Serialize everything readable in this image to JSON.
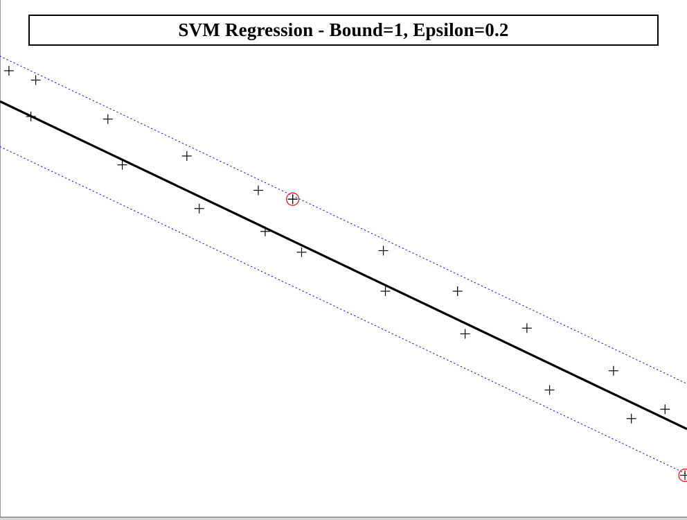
{
  "chart_data": {
    "type": "scatter",
    "title": "SVM Regression - Bound=1, Epsilon=0.2",
    "xlabel": "",
    "ylabel": "",
    "xlim": [
      0,
      1
    ],
    "ylim": [
      0,
      1
    ],
    "grid": false,
    "legend": "none",
    "regression_line": {
      "x": [
        0,
        1
      ],
      "y": [
        0.805,
        0.175
      ],
      "color": "#000000"
    },
    "epsilon_band": {
      "offset": 0.087,
      "color": "#0000ff",
      "style": "dotted"
    },
    "points": {
      "x": [
        0.013,
        0.052,
        0.045,
        0.157,
        0.178,
        0.272,
        0.29,
        0.376,
        0.386,
        0.426,
        0.439,
        0.558,
        0.561,
        0.666,
        0.677,
        0.767,
        0.8,
        0.893,
        0.919,
        0.968
      ],
      "y": [
        0.864,
        0.846,
        0.776,
        0.771,
        0.683,
        0.7,
        0.599,
        0.634,
        0.555,
        0.617,
        0.515,
        0.518,
        0.44,
        0.44,
        0.358,
        0.369,
        0.25,
        0.287,
        0.195,
        0.213
      ],
      "marker": "plus",
      "color": "#000000"
    },
    "support_vectors": {
      "x": [
        0.426,
        0.997
      ],
      "y": [
        0.617,
        0.086
      ],
      "marker": "circle",
      "color": "#ff0000"
    }
  }
}
